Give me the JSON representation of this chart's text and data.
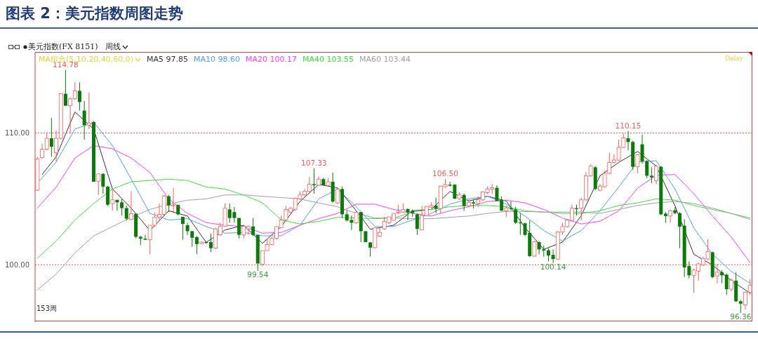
{
  "chart_data": {
    "type": "candlestick",
    "title": "图表 2：美元指数周图走势",
    "subtitle": "美元指数(FX 8151)",
    "legend_title": "MA组合(5,10,20,40,60,0)",
    "legend": "top left",
    "grid": "y",
    "tick_labels": "y",
    "annotations": [
      "周线",
      "Delay",
      "153周",
      {
        "text": "114.78",
        "y": 114.78
      },
      {
        "text": "107.33",
        "y": 107.33
      },
      {
        "text": "106.50",
        "y": 106.5
      },
      {
        "text": "110.15",
        "y": 110.15
      },
      {
        "text": "99.54",
        "y": 99.54
      },
      {
        "text": "100.14",
        "y": 100.14
      },
      {
        "text": "96.36",
        "y": 96.36
      }
    ],
    "ylim": [
      95.65,
      116.1
    ],
    "yticks": [
      {
        "value": 100,
        "label": "100.00"
      },
      {
        "value": 110,
        "label": "110.00"
      }
    ],
    "categories": [
      null,
      null,
      null,
      null,
      null,
      null,
      null,
      null,
      null,
      null,
      null,
      null,
      null,
      null,
      null,
      null,
      null,
      null,
      null,
      null,
      null,
      null,
      null,
      null,
      null,
      null,
      null,
      null,
      null,
      null,
      null,
      null,
      null,
      null,
      null,
      null,
      null,
      null,
      null,
      null,
      null,
      null,
      null,
      null,
      null,
      null,
      null,
      null,
      null,
      null,
      null,
      null,
      null,
      null,
      null,
      null,
      null,
      null,
      null,
      null,
      null,
      null,
      null,
      null,
      null,
      null,
      null,
      null,
      null,
      null,
      null,
      null,
      null,
      null,
      null,
      null,
      null,
      null,
      null,
      null,
      null,
      null,
      null,
      null,
      null,
      null,
      null,
      null,
      null,
      null,
      null,
      null,
      null,
      null,
      null,
      null,
      null,
      null,
      null,
      null,
      null,
      null,
      null,
      null,
      null,
      null,
      null,
      null,
      null,
      null,
      null,
      null,
      null,
      null,
      null,
      null,
      null,
      null,
      null,
      null,
      null,
      null,
      null,
      null,
      null,
      null,
      null,
      null,
      null,
      null,
      null,
      null,
      null,
      null,
      null,
      null,
      null,
      null,
      null,
      null,
      null,
      null,
      null,
      null,
      null,
      null,
      null,
      null,
      null,
      null,
      null,
      null,
      null
    ],
    "ohlc": [
      [
        105.66,
        108.2,
        105.6,
        108.04
      ],
      [
        108.13,
        109.2,
        108.04,
        108.77
      ],
      [
        108.77,
        109.96,
        108.68,
        109.6
      ],
      [
        109.6,
        111.15,
        108.2,
        108.96
      ],
      [
        108.5,
        110.2,
        107.8,
        109.6
      ],
      [
        109.6,
        113.0,
        109.5,
        112.98
      ],
      [
        112.98,
        114.78,
        112.07,
        112.07
      ],
      [
        112.07,
        112.7,
        109.96,
        112.6
      ],
      [
        112.6,
        113.85,
        112.5,
        113.2
      ],
      [
        113.2,
        113.85,
        111.7,
        112.35
      ],
      [
        111.7,
        112.44,
        109.5,
        110.6
      ],
      [
        110.6,
        113.08,
        110.3,
        110.75
      ],
      [
        110.84,
        110.9,
        106.3,
        106.3
      ],
      [
        106.34,
        106.9,
        105.3,
        106.9
      ],
      [
        106.9,
        106.95,
        105.4,
        105.93
      ],
      [
        105.93,
        106.0,
        104.47,
        104.56
      ],
      [
        104.65,
        105.75,
        104.1,
        104.93
      ],
      [
        104.93,
        104.93,
        104.1,
        104.74
      ],
      [
        104.74,
        105.0,
        103.74,
        104.3
      ],
      [
        104.3,
        104.5,
        103.37,
        103.5
      ],
      [
        103.44,
        105.57,
        103.37,
        103.88
      ],
      [
        103.88,
        103.88,
        102.0,
        102.12
      ],
      [
        102.12,
        102.2,
        101.5,
        101.98
      ],
      [
        101.98,
        102.27,
        101.9,
        101.9
      ],
      [
        101.9,
        103.0,
        100.8,
        103.0
      ],
      [
        103.0,
        103.96,
        102.9,
        103.6
      ],
      [
        103.6,
        104.65,
        103.37,
        103.83
      ],
      [
        103.83,
        105.3,
        103.74,
        105.2
      ],
      [
        105.2,
        105.3,
        104.0,
        104.5
      ],
      [
        104.5,
        105.84,
        103.9,
        104.54
      ],
      [
        104.54,
        104.56,
        103.74,
        103.83
      ],
      [
        103.64,
        103.64,
        101.9,
        103.1
      ],
      [
        103.0,
        103.19,
        102.27,
        102.55
      ],
      [
        102.55,
        102.55,
        101.35,
        102.05
      ],
      [
        102.1,
        102.18,
        100.8,
        101.57
      ],
      [
        101.61,
        101.76,
        101.6,
        101.72
      ],
      [
        101.72,
        101.76,
        101.6,
        101.65
      ],
      [
        101.72,
        102.36,
        100.95,
        101.26
      ],
      [
        101.26,
        102.82,
        101.17,
        102.73
      ],
      [
        102.27,
        103.19,
        102.18,
        102.91
      ],
      [
        102.91,
        104.65,
        102.91,
        104.29
      ],
      [
        104.2,
        104.65,
        103.19,
        103.55
      ],
      [
        104.0,
        104.38,
        103.19,
        103.55
      ],
      [
        103.55,
        103.55,
        102.0,
        102.27
      ],
      [
        102.27,
        103.0,
        102.0,
        102.91
      ],
      [
        102.73,
        103.0,
        102.27,
        102.9
      ],
      [
        102.91,
        103.55,
        102.18,
        102.27
      ],
      [
        102.27,
        102.27,
        99.54,
        100.1
      ],
      [
        100.05,
        101.08,
        99.9,
        101.08
      ],
      [
        101.08,
        102.0,
        101.08,
        101.54
      ],
      [
        101.54,
        102.1,
        101.5,
        102.0
      ],
      [
        102.0,
        102.9,
        101.9,
        102.9
      ],
      [
        102.82,
        103.74,
        102.82,
        103.4
      ],
      [
        103.4,
        104.47,
        103.37,
        104.2
      ],
      [
        104.0,
        104.38,
        103.92,
        104.29
      ],
      [
        104.2,
        105.1,
        104.1,
        105.05
      ],
      [
        105.0,
        105.57,
        104.92,
        105.3
      ],
      [
        105.3,
        105.75,
        105.2,
        105.57
      ],
      [
        105.57,
        106.66,
        105.48,
        106.12
      ],
      [
        106.12,
        107.33,
        105.4,
        106.04
      ],
      [
        106.04,
        106.7,
        106.0,
        106.5
      ],
      [
        106.5,
        106.6,
        106.03,
        106.03
      ],
      [
        106.03,
        106.6,
        105.94,
        106.3
      ],
      [
        106.3,
        107.0,
        104.7,
        104.8
      ],
      [
        104.7,
        105.85,
        104.6,
        105.75
      ],
      [
        105.75,
        105.94,
        103.55,
        103.83
      ],
      [
        103.83,
        104.1,
        103.28,
        103.37
      ],
      [
        103.4,
        103.74,
        102.64,
        103.19
      ],
      [
        103.19,
        104.1,
        103.1,
        104.0
      ],
      [
        104.0,
        104.0,
        101.72,
        102.55
      ],
      [
        102.55,
        102.55,
        101.72,
        101.72
      ],
      [
        101.7,
        101.7,
        100.62,
        101.3
      ],
      [
        101.3,
        102.8,
        101.26,
        102.8
      ],
      [
        102.18,
        102.82,
        102.1,
        102.45
      ],
      [
        102.73,
        103.64,
        102.64,
        103.28
      ],
      [
        103.19,
        103.64,
        103.1,
        103.64
      ],
      [
        103.37,
        103.9,
        103.37,
        103.9
      ],
      [
        103.92,
        104.56,
        103.83,
        104.0
      ],
      [
        104.0,
        104.65,
        103.92,
        104.2
      ],
      [
        104.23,
        104.28,
        103.37,
        103.96
      ],
      [
        104.1,
        104.2,
        103.64,
        103.92
      ],
      [
        103.83,
        103.92,
        102.27,
        102.73
      ],
      [
        102.64,
        104.47,
        102.64,
        103.74
      ],
      [
        103.74,
        104.47,
        103.74,
        104.43
      ],
      [
        104.38,
        104.74,
        104.28,
        104.5
      ],
      [
        104.5,
        105.1,
        103.92,
        104.25
      ],
      [
        104.25,
        106.0,
        103.92,
        105.97
      ],
      [
        105.93,
        106.5,
        105.84,
        106.08
      ],
      [
        106.08,
        106.3,
        105.93,
        106.0
      ],
      [
        106.08,
        106.12,
        104.98,
        105.02
      ],
      [
        105.02,
        105.48,
        104.93,
        105.3
      ],
      [
        105.3,
        105.4,
        104.1,
        104.47
      ],
      [
        104.47,
        104.93,
        104.38,
        104.74
      ],
      [
        104.74,
        104.93,
        104.28,
        104.65
      ],
      [
        104.65,
        105.2,
        104.38,
        104.93
      ],
      [
        104.93,
        105.57,
        104.84,
        105.53
      ],
      [
        105.48,
        105.93,
        105.38,
        105.75
      ],
      [
        105.75,
        106.12,
        105.38,
        105.84
      ],
      [
        105.84,
        106.03,
        104.84,
        104.84
      ],
      [
        104.93,
        105.2,
        104.1,
        104.1
      ],
      [
        104.1,
        104.47,
        103.64,
        104.32
      ],
      [
        104.3,
        104.84,
        104.1,
        104.23
      ],
      [
        104.2,
        104.38,
        103.1,
        103.19
      ],
      [
        103.22,
        103.92,
        102.27,
        103.15
      ],
      [
        103.15,
        103.19,
        102.18,
        102.27
      ],
      [
        102.42,
        103.37,
        100.6,
        100.66
      ],
      [
        100.66,
        101.8,
        100.62,
        101.76
      ],
      [
        101.72,
        101.8,
        100.8,
        101.17
      ],
      [
        101.17,
        101.45,
        100.62,
        101.08
      ],
      [
        101.1,
        101.26,
        100.26,
        100.7
      ],
      [
        100.75,
        101.17,
        100.14,
        100.44
      ],
      [
        100.44,
        102.55,
        100.35,
        102.49
      ],
      [
        102.49,
        103.19,
        102.27,
        102.9
      ],
      [
        102.9,
        103.46,
        102.82,
        103.4
      ],
      [
        103.37,
        104.56,
        103.28,
        104.29
      ],
      [
        104.3,
        104.56,
        103.74,
        104.23
      ],
      [
        104.29,
        105.1,
        103.37,
        104.93
      ],
      [
        104.93,
        107.03,
        104.84,
        106.75
      ],
      [
        106.75,
        107.6,
        106.68,
        107.49
      ],
      [
        107.4,
        107.49,
        105.66,
        105.75
      ],
      [
        105.66,
        106.12,
        105.57,
        105.97
      ],
      [
        105.93,
        107.12,
        105.84,
        106.94
      ],
      [
        106.94,
        108.5,
        106.85,
        107.77
      ],
      [
        107.77,
        108.4,
        107.67,
        107.95
      ],
      [
        107.95,
        109.5,
        107.86,
        108.9
      ],
      [
        108.9,
        109.96,
        108.86,
        109.63
      ],
      [
        109.6,
        110.15,
        108.68,
        109.32
      ],
      [
        109.32,
        109.41,
        107.2,
        107.44
      ],
      [
        107.44,
        108.4,
        106.94,
        108.35
      ],
      [
        109.14,
        109.87,
        107.67,
        107.86
      ],
      [
        107.86,
        107.95,
        106.57,
        106.76
      ],
      [
        106.76,
        107.4,
        106.2,
        106.63
      ],
      [
        106.39,
        107.58,
        106.12,
        107.49
      ],
      [
        107.44,
        107.49,
        103.77,
        103.83
      ],
      [
        103.88,
        104.0,
        103.19,
        103.7
      ],
      [
        103.7,
        104.19,
        103.19,
        104.1
      ],
      [
        104.14,
        104.38,
        103.83,
        103.92
      ],
      [
        103.92,
        104.0,
        101.26,
        102.9
      ],
      [
        102.97,
        103.46,
        99.07,
        99.8
      ],
      [
        99.9,
        100.26,
        98.97,
        99.2
      ],
      [
        99.2,
        99.7,
        97.88,
        99.6
      ],
      [
        99.52,
        100.16,
        98.8,
        100.07
      ],
      [
        99.98,
        100.62,
        99.89,
        100.48
      ],
      [
        100.44,
        101.94,
        100.35,
        100.99
      ],
      [
        100.95,
        100.99,
        98.97,
        99.07
      ],
      [
        99.16,
        100.07,
        98.6,
        99.43
      ],
      [
        99.43,
        99.6,
        98.6,
        99.2
      ],
      [
        99.25,
        99.34,
        97.7,
        98.15
      ],
      [
        98.15,
        98.97,
        97.97,
        98.83
      ],
      [
        98.8,
        99.43,
        97.18,
        97.23
      ],
      [
        97.23,
        97.33,
        96.36,
        97.05
      ],
      [
        96.96,
        97.97,
        96.6,
        97.91
      ],
      [
        97.91,
        98.92,
        97.73,
        98.46
      ]
    ],
    "series": [
      {
        "type": "line",
        "name": "MA5 97.85",
        "color": "#333333",
        "values": [
          null,
          106.85,
          null,
          null,
          108.2,
          null,
          null,
          null,
          111.6,
          null,
          null,
          null,
          110.3,
          null,
          null,
          null,
          105.75,
          null,
          null,
          null,
          104.3,
          null,
          null,
          null,
          102.6,
          null,
          null,
          null,
          104.1,
          null,
          null,
          null,
          103.7,
          null,
          null,
          null,
          101.7,
          null,
          null,
          null,
          102.64,
          null,
          null,
          null,
          103.0,
          null,
          null,
          null,
          101.63,
          null,
          null,
          null,
          102.9,
          null,
          null,
          null,
          104.8,
          null,
          null,
          null,
          106.1,
          null,
          null,
          null,
          105.84,
          null,
          null,
          null,
          104.1,
          null,
          null,
          102.7,
          null,
          null,
          null,
          null,
          103.0,
          null,
          null,
          null,
          104.1,
          null,
          null,
          null,
          104.2,
          null,
          null,
          null,
          105.57,
          null,
          null,
          null,
          104.84,
          null,
          null,
          null,
          105.2,
          null,
          null,
          null,
          104.84,
          null,
          null,
          null,
          102.82,
          null,
          null,
          null,
          101.17,
          null,
          null,
          null,
          101.72,
          null,
          null,
          null,
          103.74,
          null,
          null,
          null,
          106.76,
          null,
          null,
          null,
          107.77,
          null,
          null,
          null,
          108.6,
          null,
          null,
          null,
          107.49,
          null,
          null,
          null,
          104.47,
          null,
          null,
          null,
          100.8,
          null,
          null,
          null,
          99.98,
          null,
          null,
          null,
          98.8,
          null,
          null,
          null,
          97.85
        ]
      },
      {
        "type": "line",
        "name": "MA10 98.60",
        "color": "#4da3f0",
        "values": [
          106.2,
          null,
          null,
          null,
          107.8,
          null,
          null,
          null,
          110.3,
          null,
          null,
          null,
          110.8,
          null,
          null,
          null,
          109.05,
          null,
          null,
          null,
          106.5,
          null,
          null,
          null,
          103.9,
          null,
          null,
          null,
          103.4,
          null,
          null,
          null,
          103.5,
          null,
          null,
          null,
          102.9,
          null,
          null,
          null,
          102.4,
          null,
          null,
          null,
          102.45,
          null,
          null,
          null,
          102.2,
          null,
          null,
          null,
          102.2,
          null,
          null,
          null,
          103.0,
          null,
          null,
          null,
          105.0,
          null,
          null,
          null,
          105.75,
          null,
          null,
          null,
          104.4,
          null,
          null,
          null,
          102.9,
          null,
          null,
          null,
          102.9,
          null,
          null,
          null,
          103.4,
          null,
          null,
          null,
          103.9,
          null,
          null,
          null,
          104.6,
          null,
          null,
          null,
          105.0,
          null,
          null,
          null,
          105.2,
          null,
          null,
          null,
          104.6,
          null,
          null,
          null,
          103.7,
          null,
          null,
          null,
          102.6,
          null,
          null,
          null,
          101.8,
          null,
          null,
          null,
          102.6,
          null,
          null,
          null,
          104.1,
          null,
          null,
          null,
          105.9,
          null,
          null,
          null,
          107.8,
          null,
          null,
          null,
          107.9,
          null,
          null,
          null,
          105.75,
          null,
          null,
          null,
          102.8,
          null,
          null,
          null,
          100.8,
          null,
          null,
          null,
          99.5,
          null,
          null,
          null,
          98.6
        ]
      },
      {
        "type": "line",
        "name": "MA20 100.17",
        "color": "#ff3cff",
        "values": [
          104.3,
          null,
          null,
          null,
          105.9,
          null,
          null,
          null,
          108.1,
          null,
          null,
          null,
          109.05,
          null,
          null,
          null,
          108.8,
          null,
          null,
          null,
          108.1,
          null,
          null,
          null,
          107.0,
          null,
          null,
          null,
          105.0,
          null,
          null,
          null,
          103.9,
          null,
          null,
          null,
          103.2,
          null,
          null,
          null,
          103.0,
          null,
          null,
          null,
          102.9,
          null,
          null,
          null,
          102.4,
          null,
          null,
          null,
          102.45,
          null,
          null,
          null,
          103.0,
          null,
          null,
          null,
          103.5,
          null,
          null,
          null,
          103.9,
          null,
          null,
          null,
          104.6,
          null,
          null,
          null,
          104.6,
          null,
          null,
          null,
          104.2,
          null,
          null,
          null,
          103.9,
          null,
          null,
          null,
          103.7,
          null,
          null,
          null,
          104.1,
          null,
          null,
          null,
          104.4,
          null,
          null,
          null,
          104.8,
          null,
          null,
          null,
          104.9,
          null,
          null,
          null,
          104.7,
          null,
          null,
          null,
          104.2,
          null,
          null,
          null,
          103.55,
          null,
          null,
          null,
          103.1,
          null,
          null,
          null,
          103.3,
          null,
          null,
          null,
          104.1,
          null,
          null,
          null,
          105.8,
          null,
          null,
          null,
          106.8,
          null,
          null,
          null,
          106.85,
          null,
          null,
          null,
          105.4,
          null,
          null,
          null,
          103.7,
          null,
          null,
          null,
          102.1,
          null,
          null,
          null,
          100.17
        ]
      },
      {
        "type": "line",
        "name": "MA40 103.55",
        "color": "#3ee03e",
        "values": [
          100.5,
          null,
          null,
          null,
          101.8,
          null,
          null,
          null,
          103.4,
          null,
          null,
          null,
          104.65,
          null,
          null,
          null,
          105.75,
          null,
          null,
          null,
          106.3,
          null,
          null,
          null,
          106.4,
          null,
          null,
          null,
          106.5,
          null,
          null,
          null,
          106.4,
          null,
          null,
          null,
          105.9,
          null,
          null,
          null,
          105.75,
          null,
          null,
          null,
          105.3,
          null,
          null,
          null,
          104.7,
          null,
          null,
          null,
          103.4,
          null,
          null,
          null,
          103.1,
          null,
          null,
          null,
          103.3,
          null,
          null,
          null,
          103.6,
          null,
          null,
          null,
          103.55,
          null,
          null,
          null,
          103.5,
          null,
          null,
          null,
          103.55,
          null,
          null,
          null,
          104.0,
          null,
          null,
          null,
          104.2,
          null,
          null,
          null,
          104.4,
          null,
          null,
          null,
          104.5,
          null,
          null,
          null,
          104.5,
          null,
          null,
          null,
          104.4,
          null,
          null,
          null,
          104.1,
          null,
          null,
          null,
          104.0,
          null,
          null,
          null,
          103.9,
          null,
          null,
          null,
          103.9,
          null,
          null,
          null,
          104.1,
          null,
          null,
          null,
          104.5,
          null,
          null,
          null,
          104.7,
          null,
          null,
          null,
          105.0,
          null,
          null,
          null,
          104.9,
          null,
          null,
          null,
          104.5,
          null,
          null,
          null,
          104.2,
          null,
          null,
          null,
          103.9,
          null,
          null,
          null,
          103.55
        ]
      },
      {
        "type": "line",
        "name": "MA60 103.44",
        "color": "#a0a0a0",
        "values": [
          98.1,
          null,
          null,
          null,
          99.3,
          null,
          null,
          null,
          100.9,
          null,
          null,
          null,
          102.2,
          null,
          null,
          null,
          102.9,
          null,
          null,
          null,
          103.6,
          null,
          null,
          null,
          104.2,
          null,
          null,
          null,
          104.6,
          null,
          null,
          null,
          104.9,
          null,
          null,
          null,
          105.0,
          null,
          null,
          null,
          105.3,
          null,
          null,
          null,
          105.3,
          null,
          null,
          null,
          105.2,
          null,
          null,
          null,
          105.1,
          null,
          null,
          null,
          105.0,
          null,
          null,
          null,
          104.7,
          null,
          null,
          null,
          104.4,
          null,
          null,
          null,
          103.9,
          null,
          null,
          null,
          103.55,
          null,
          null,
          null,
          103.55,
          null,
          null,
          null,
          103.5,
          null,
          null,
          null,
          103.5,
          null,
          null,
          null,
          103.6,
          null,
          null,
          null,
          103.7,
          null,
          null,
          null,
          103.9,
          null,
          null,
          null,
          104.05,
          null,
          null,
          null,
          104.05,
          null,
          null,
          null,
          104.0,
          null,
          null,
          null,
          104.0,
          null,
          null,
          null,
          104.0,
          null,
          null,
          null,
          103.9,
          null,
          null,
          null,
          104.2,
          null,
          null,
          null,
          104.5,
          null,
          null,
          null,
          104.7,
          null,
          null,
          null,
          104.8,
          null,
          null,
          null,
          104.65,
          null,
          null,
          null,
          104.3,
          null,
          null,
          null,
          103.9,
          null,
          null,
          null,
          103.44
        ]
      }
    ]
  }
}
